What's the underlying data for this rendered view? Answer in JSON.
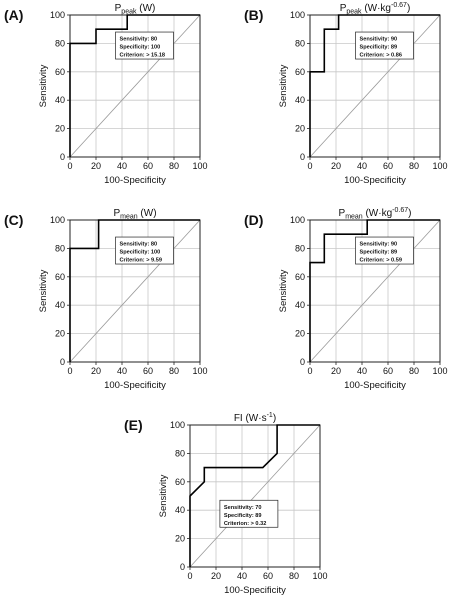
{
  "chart_data": [
    {
      "type": "line",
      "panel_label": "(A)",
      "title": "P",
      "title_sub": "peak",
      "title_unit": " (W)",
      "xlabel": "100-Specificity",
      "ylabel": "Sensitivity",
      "xlim": [
        0,
        100
      ],
      "ylim": [
        0,
        100
      ],
      "ticks": [
        0,
        20,
        40,
        60,
        80,
        100
      ],
      "grid": true,
      "roc": [
        [
          0,
          0
        ],
        [
          0,
          80
        ],
        [
          20,
          80
        ],
        [
          20,
          90
        ],
        [
          44,
          90
        ],
        [
          44,
          100
        ],
        [
          100,
          100
        ]
      ],
      "stats": [
        "Sensitivity: 80",
        "Specificity: 100",
        "Criterion: > 15.18"
      ],
      "box_position": "top-right"
    },
    {
      "type": "line",
      "panel_label": "(B)",
      "title": "P",
      "title_sub": "peak",
      "title_unit": " (W·kg",
      "title_sup": "-0.67",
      "title_close": ")",
      "xlabel": "100-Specificity",
      "ylabel": "Sensitivity",
      "xlim": [
        0,
        100
      ],
      "ylim": [
        0,
        100
      ],
      "ticks": [
        0,
        20,
        40,
        60,
        80,
        100
      ],
      "grid": true,
      "roc": [
        [
          0,
          0
        ],
        [
          0,
          60
        ],
        [
          11,
          60
        ],
        [
          11,
          90
        ],
        [
          22,
          90
        ],
        [
          22,
          100
        ],
        [
          100,
          100
        ]
      ],
      "stats": [
        "Sensitivity: 90",
        "Specificity: 89",
        "Criterion: > 0.86"
      ],
      "box_position": "top-right"
    },
    {
      "type": "line",
      "panel_label": "(C)",
      "title": "P",
      "title_sub": "mean",
      "title_unit": " (W)",
      "xlabel": "100-Specificity",
      "ylabel": "Sensitivity",
      "xlim": [
        0,
        100
      ],
      "ylim": [
        0,
        100
      ],
      "ticks": [
        0,
        20,
        40,
        60,
        80,
        100
      ],
      "grid": true,
      "roc": [
        [
          0,
          0
        ],
        [
          0,
          80
        ],
        [
          22,
          80
        ],
        [
          22,
          100
        ],
        [
          100,
          100
        ]
      ],
      "stats": [
        "Sensitivity: 80",
        "Specificity: 100",
        "Criterion: > 9.59"
      ],
      "box_position": "top-right"
    },
    {
      "type": "line",
      "panel_label": "(D)",
      "title": "P",
      "title_sub": "mean",
      "title_unit": " (W·kg",
      "title_sup": "-0.67",
      "title_close": ")",
      "xlabel": "100-Specificity",
      "ylabel": "Sensitivity",
      "xlim": [
        0,
        100
      ],
      "ylim": [
        0,
        100
      ],
      "ticks": [
        0,
        20,
        40,
        60,
        80,
        100
      ],
      "grid": true,
      "roc": [
        [
          0,
          0
        ],
        [
          0,
          70
        ],
        [
          11,
          70
        ],
        [
          11,
          90
        ],
        [
          44,
          90
        ],
        [
          44,
          100
        ],
        [
          100,
          100
        ]
      ],
      "stats": [
        "Sensitivity: 90",
        "Specificity: 89",
        "Criterion: > 0.59"
      ],
      "box_position": "top-right"
    },
    {
      "type": "line",
      "panel_label": "(E)",
      "title": "FI",
      "title_sub": "",
      "title_unit": " (W·s",
      "title_sup": "-1",
      "title_close": ")",
      "xlabel": "100-Specificity",
      "ylabel": "Sensitivity",
      "xlim": [
        0,
        100
      ],
      "ylim": [
        0,
        100
      ],
      "ticks": [
        0,
        20,
        40,
        60,
        80,
        100
      ],
      "grid": true,
      "roc": [
        [
          0,
          0
        ],
        [
          0,
          50
        ],
        [
          11,
          60
        ],
        [
          11,
          70
        ],
        [
          56,
          70
        ],
        [
          67,
          80
        ],
        [
          67,
          100
        ],
        [
          100,
          100
        ]
      ],
      "stats": [
        "Sensitivity: 70",
        "Specificity: 89",
        "Criterion: > 0.32"
      ],
      "box_position": "bottom-center"
    }
  ]
}
